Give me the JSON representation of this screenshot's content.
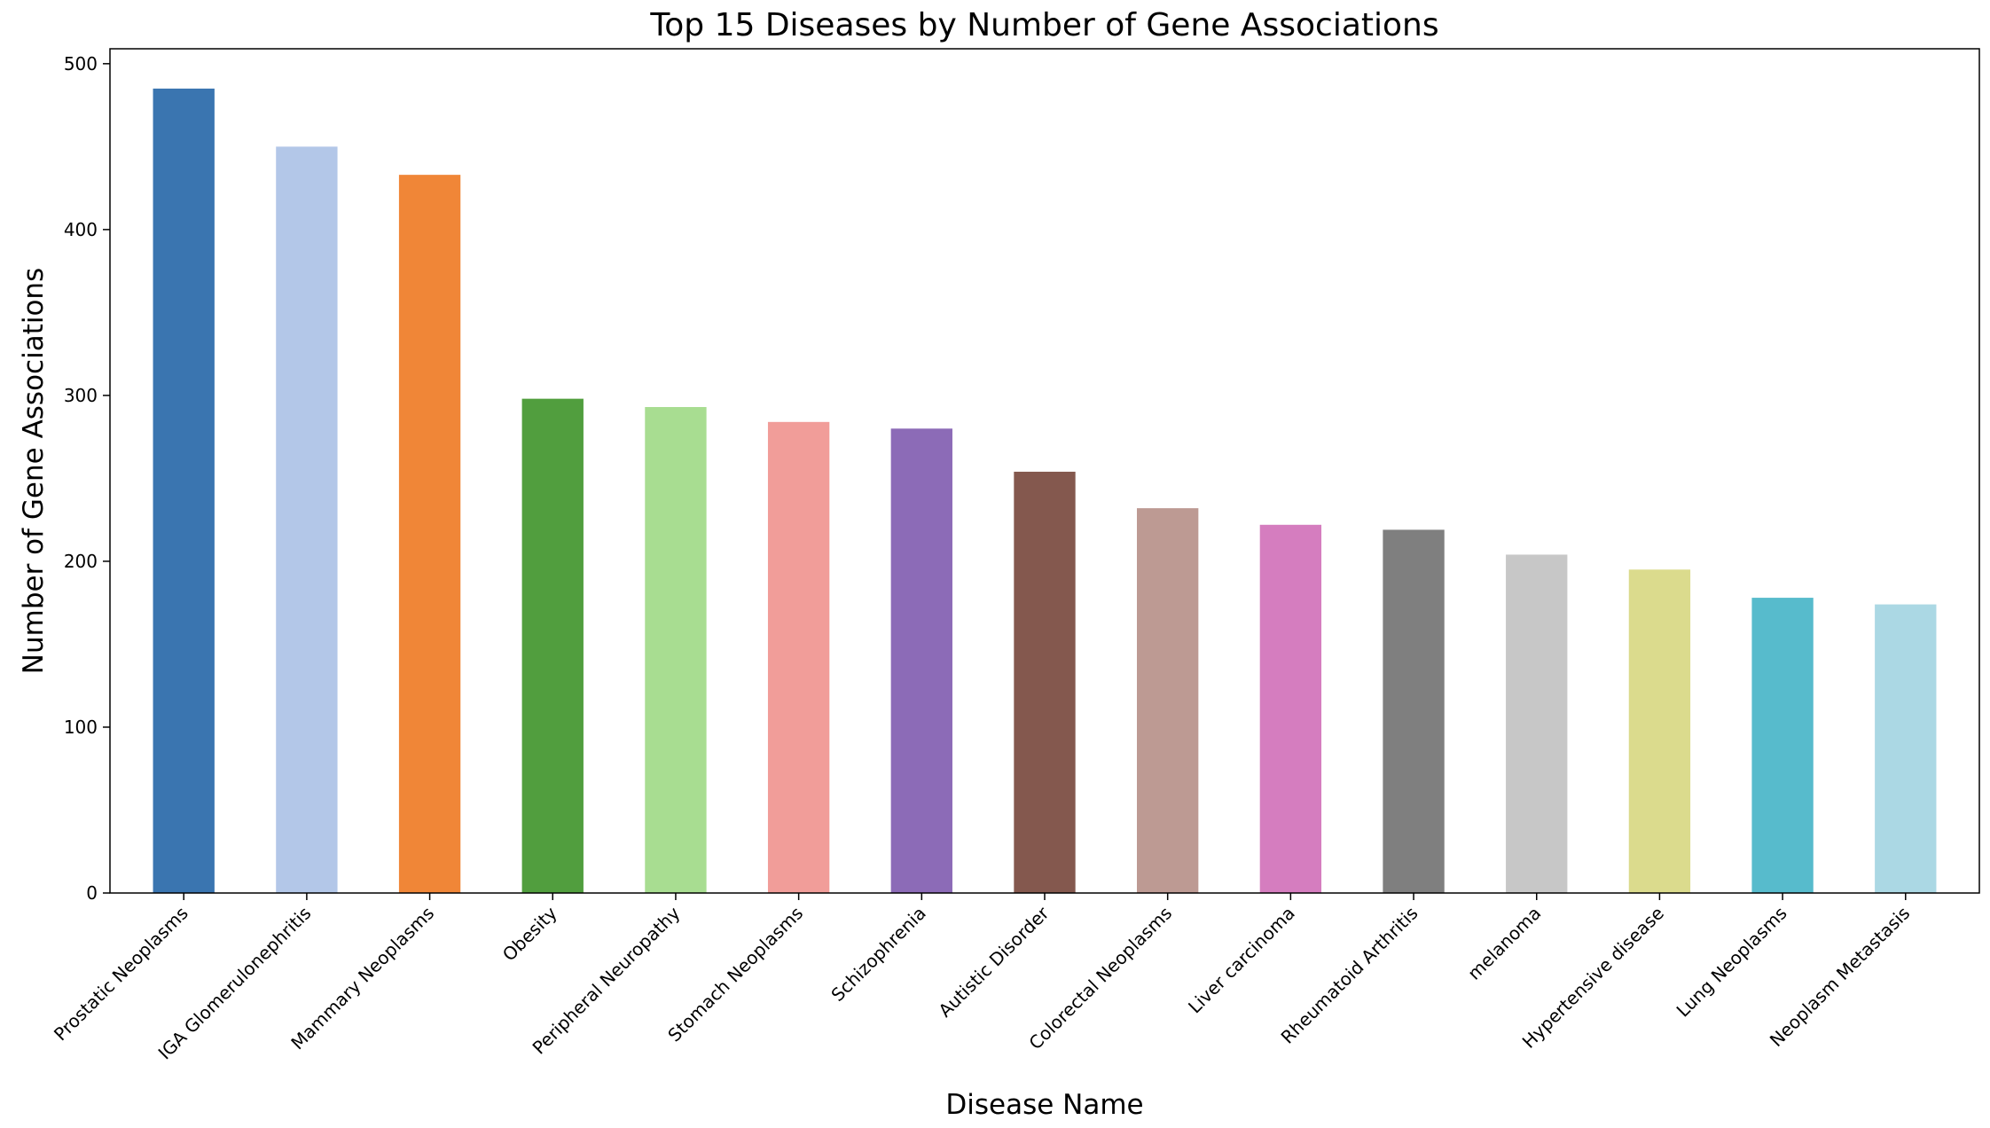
{
  "chart_data": {
    "type": "bar",
    "title": "Top 15 Diseases by Number of Gene Associations",
    "xlabel": "Disease Name",
    "ylabel": "Number of Gene Associations",
    "categories": [
      "Prostatic Neoplasms",
      "IGA Glomerulonephritis",
      "Mammary Neoplasms",
      "Obesity",
      "Peripheral Neuropathy",
      "Stomach Neoplasms",
      "Schizophrenia",
      "Autistic Disorder",
      "Colorectal Neoplasms",
      "Liver carcinoma",
      "Rheumatoid Arthritis",
      "melanoma",
      "Hypertensive disease",
      "Lung Neoplasms",
      "Neoplasm Metastasis"
    ],
    "values": [
      485,
      450,
      433,
      298,
      293,
      284,
      280,
      254,
      232,
      222,
      219,
      204,
      195,
      178,
      174
    ],
    "colors": [
      "#3a75b0",
      "#b3c7e8",
      "#f08637",
      "#519e3e",
      "#a8dd91",
      "#f19d99",
      "#8c6bb7",
      "#84584e",
      "#bd9a93",
      "#d57dbf",
      "#7f7f7f",
      "#c7c7c7",
      "#dbdb8d",
      "#57bbcc",
      "#abd8e4"
    ],
    "yticks": [
      0,
      100,
      200,
      300,
      400,
      500
    ],
    "ylim": [
      0,
      509
    ],
    "grid": false,
    "legend": "none"
  }
}
